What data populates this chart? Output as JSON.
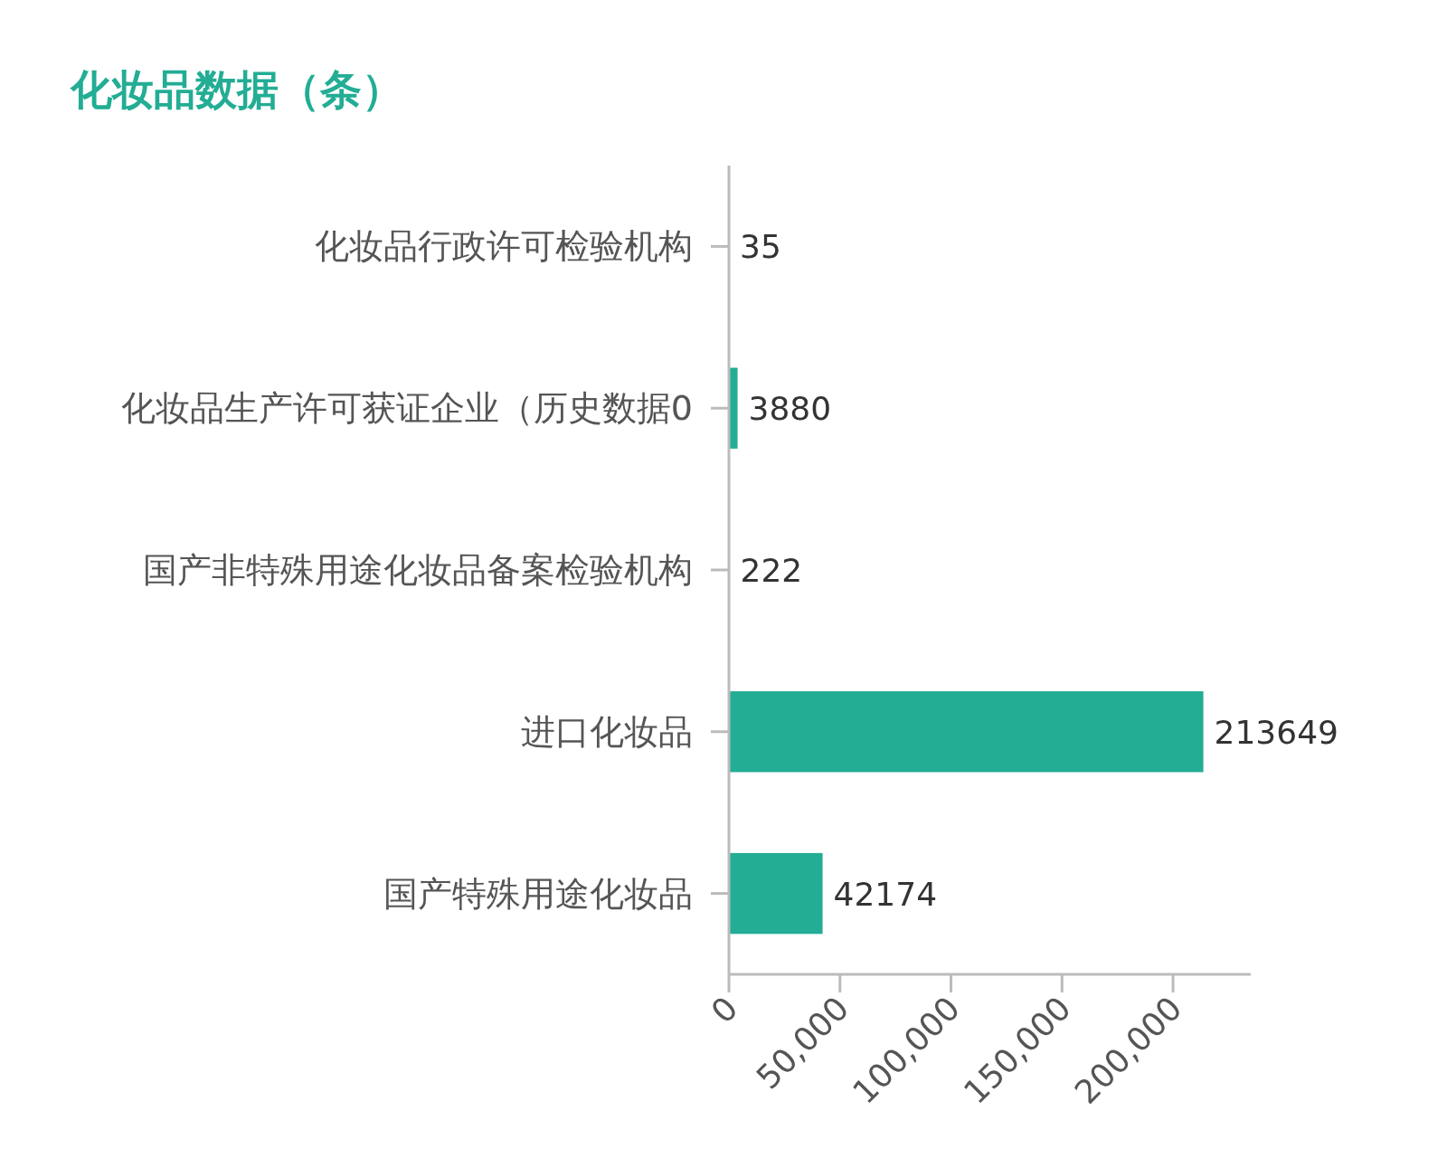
{
  "chart_data": {
    "type": "bar",
    "orientation": "horizontal",
    "title": "化妆品数据（条）",
    "categories": [
      "化妆品行政许可检验机构",
      "化妆品生产许可获证企业（历史数据0",
      "国产非特殊用途化妆品备案检验机构",
      "进口化妆品",
      "国产特殊用途化妆品"
    ],
    "values": [
      35,
      3880,
      222,
      213649,
      42174
    ],
    "color": "#22ad94",
    "xlim": [
      0,
      235000
    ],
    "xticks": [
      0,
      {
        "value": 50000,
        "label": "50,000"
      },
      {
        "value": 100000,
        "label": "100,000"
      },
      {
        "value": 150000,
        "label": "150,000"
      },
      {
        "value": 200000,
        "label": "200,000"
      }
    ],
    "data_labels": true,
    "grid": false
  }
}
